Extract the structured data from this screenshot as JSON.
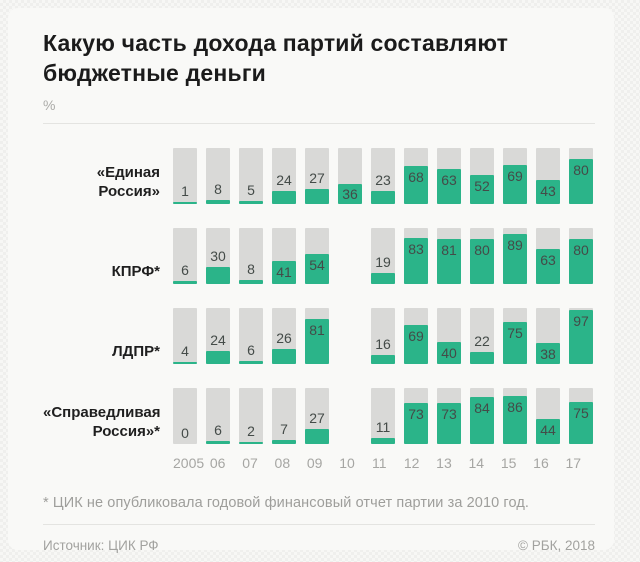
{
  "header": {
    "title": "Какую часть дохода партий составляют бюджетные деньги",
    "unit": "%"
  },
  "chart_data": {
    "type": "bar",
    "title": "Какую часть дохода партий составляют бюджетные деньги",
    "ylabel": "%",
    "ylim": [
      0,
      100
    ],
    "grid": false,
    "legend_position": "none",
    "categories": [
      "2005",
      "06",
      "07",
      "08",
      "09",
      "10",
      "11",
      "12",
      "13",
      "14",
      "15",
      "16",
      "17"
    ],
    "series": [
      {
        "name": "«Единая Россия»",
        "label_lines": [
          "«Единая",
          "Россия»"
        ],
        "values": [
          1,
          8,
          5,
          24,
          27,
          36,
          23,
          68,
          63,
          52,
          69,
          43,
          80
        ]
      },
      {
        "name": "КПРФ*",
        "label_lines": [
          "КПРФ*"
        ],
        "values": [
          6,
          30,
          8,
          41,
          54,
          null,
          19,
          83,
          81,
          80,
          89,
          63,
          80
        ]
      },
      {
        "name": "ЛДПР*",
        "label_lines": [
          "ЛДПР*"
        ],
        "values": [
          4,
          24,
          6,
          26,
          81,
          null,
          16,
          69,
          40,
          22,
          75,
          38,
          97
        ]
      },
      {
        "name": "«Справедливая Россия»*",
        "label_lines": [
          "«Справедливая",
          "Россия»*"
        ],
        "values": [
          0,
          6,
          2,
          7,
          27,
          null,
          11,
          73,
          73,
          84,
          86,
          44,
          75
        ]
      }
    ],
    "missing_value_meaning": "нет бара за 2010 год у партий со звездочкой",
    "colors": {
      "fill": "#2bb489",
      "track": "#d9d9d7",
      "value_text": "#444b48"
    }
  },
  "footnote": {
    "text": "* ЦИК не опубликовала годовой финансовый отчет партии за 2010 год."
  },
  "footer": {
    "source": "Источник: ЦИК РФ",
    "copyright": "© РБК, 2018"
  }
}
